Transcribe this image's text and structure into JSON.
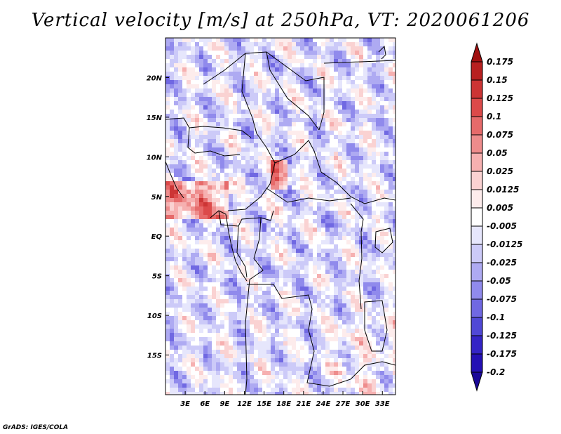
{
  "app": {
    "credit": "GrADS: IGES/COLA"
  },
  "chart_data": {
    "type": "heatmap",
    "title": "Vertical velocity [m/s] at 250hPa, VT: 2020061206",
    "xlabel": "",
    "ylabel": "",
    "xlim": [
      0,
      35
    ],
    "ylim": [
      -20,
      25
    ],
    "x_ticks": [
      {
        "value": 3,
        "label": "3E"
      },
      {
        "value": 6,
        "label": "6E"
      },
      {
        "value": 9,
        "label": "9E"
      },
      {
        "value": 12,
        "label": "12E"
      },
      {
        "value": 15,
        "label": "15E"
      },
      {
        "value": 18,
        "label": "18E"
      },
      {
        "value": 21,
        "label": "21E"
      },
      {
        "value": 24,
        "label": "24E"
      },
      {
        "value": 27,
        "label": "27E"
      },
      {
        "value": 30,
        "label": "30E"
      },
      {
        "value": 33,
        "label": "33E"
      }
    ],
    "y_ticks": [
      {
        "value": 20,
        "label": "20N"
      },
      {
        "value": 15,
        "label": "15N"
      },
      {
        "value": 10,
        "label": "10N"
      },
      {
        "value": 5,
        "label": "5N"
      },
      {
        "value": 0,
        "label": "EQ"
      },
      {
        "value": -5,
        "label": "5S"
      },
      {
        "value": -10,
        "label": "10S"
      },
      {
        "value": -15,
        "label": "15S"
      }
    ],
    "colorbar": {
      "levels": [
        "0.175",
        "0.15",
        "0.125",
        "0.1",
        "0.075",
        "0.05",
        "0.025",
        "0.0125",
        "0.005",
        "-0.005",
        "-0.0125",
        "-0.025",
        "-0.05",
        "-0.075",
        "-0.1",
        "-0.125",
        "-0.175",
        "-0.2"
      ],
      "colors": [
        "#a01010",
        "#b82020",
        "#cc3535",
        "#dc4a4a",
        "#e66a6a",
        "#ee8c8c",
        "#f6b0b0",
        "#fad2d2",
        "#fdecec",
        "#ffffff",
        "#e6e6fc",
        "#cccaf8",
        "#aeaaf2",
        "#908aec",
        "#7068e2",
        "#5048d6",
        "#3424c6",
        "#2410b4",
        "#1a0898"
      ]
    },
    "field_note": "Noisy high-resolution field over Central Africa; strongest ascent near 3-7N along 0-9E and at ~8N 17E."
  }
}
